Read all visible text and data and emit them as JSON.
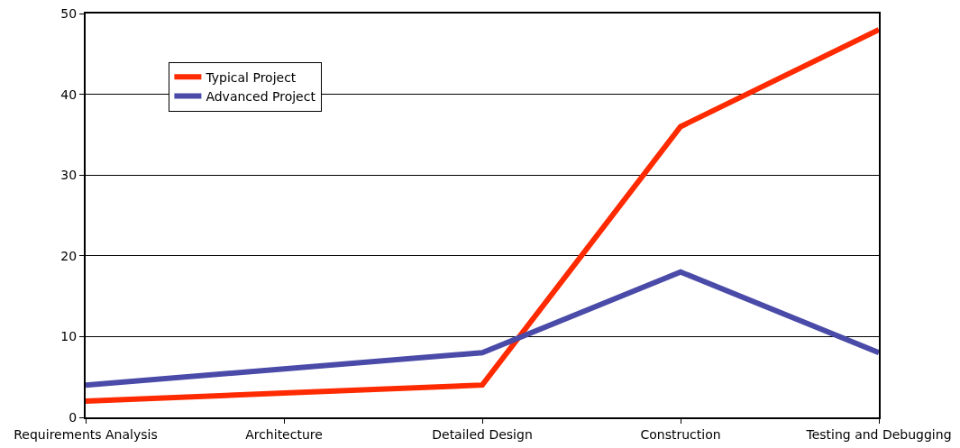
{
  "chart_data": {
    "type": "line",
    "categories": [
      "Requirements Analysis",
      "Architecture",
      "Detailed Design",
      "Construction",
      "Testing and Debugging"
    ],
    "series": [
      {
        "name": "Typical Project",
        "color": "#ff2a00",
        "values": [
          2,
          3,
          4,
          36,
          48
        ]
      },
      {
        "name": "Advanced Project",
        "color": "#4a4aa8",
        "values": [
          4,
          6,
          8,
          18,
          8
        ]
      }
    ],
    "ylim": [
      0,
      50
    ],
    "yticks": [
      0,
      10,
      20,
      30,
      40,
      50
    ],
    "grid": "y",
    "legend": "top left",
    "marker": "none",
    "line_style": "solid"
  }
}
